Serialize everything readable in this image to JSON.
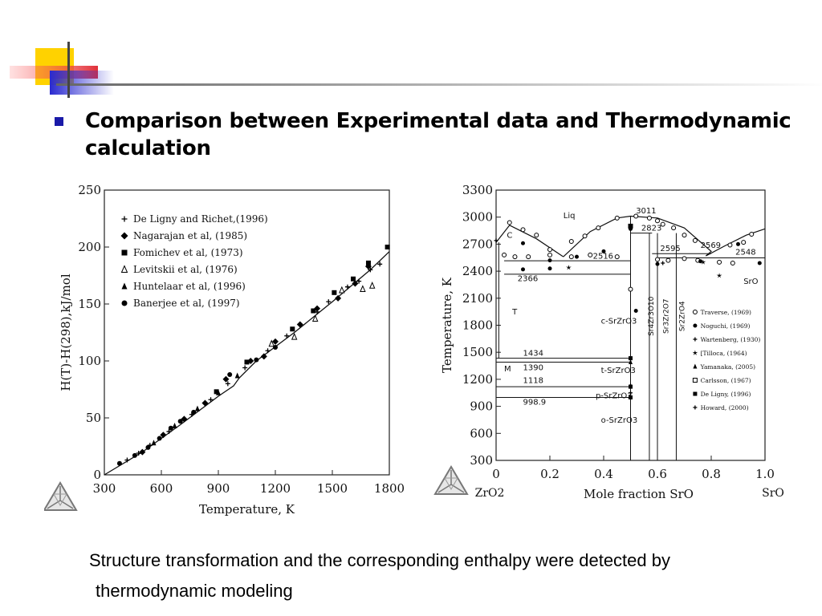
{
  "slide": {
    "title": "Comparison between Experimental data and Thermodynamic calculation",
    "caption_line1": "Structure transformation and the corresponding enthalpy were detected by",
    "caption_line2": "thermodynamic modeling",
    "bullet_color": "#1a1aa8",
    "icons": [
      "corner-decoration",
      "bullet-square",
      "software-logo-triangle"
    ]
  },
  "chart_data": [
    {
      "type": "scatter",
      "title": "",
      "xlabel": "Temperature, K",
      "ylabel": "H(T)-H(298),kJ/mol",
      "xlim": [
        300,
        1800
      ],
      "ylim": [
        0,
        250
      ],
      "x_ticks": [
        "300",
        "600",
        "900",
        "1200",
        "1500",
        "1800"
      ],
      "y_ticks": [
        "0",
        "50",
        "100",
        "150",
        "200",
        "250"
      ],
      "legend_position": "top-left",
      "calculated_line": [
        [
          300,
          0
        ],
        [
          500,
          20
        ],
        [
          700,
          44
        ],
        [
          900,
          69
        ],
        [
          980,
          78
        ],
        [
          1010,
          85
        ],
        [
          1100,
          100
        ],
        [
          1300,
          125
        ],
        [
          1500,
          152
        ],
        [
          1700,
          180
        ],
        [
          1800,
          196
        ]
      ],
      "series": [
        {
          "name": "De Ligny and Richet,(1996)",
          "marker": "plus",
          "points": [
            [
              420,
              13
            ],
            [
              480,
              19
            ],
            [
              540,
              26
            ],
            [
              640,
              38
            ],
            [
              760,
              53
            ],
            [
              860,
              66
            ],
            [
              950,
              80
            ],
            [
              1040,
              94
            ],
            [
              1160,
              109
            ],
            [
              1260,
              122
            ],
            [
              1420,
              143
            ],
            [
              1480,
              152
            ],
            [
              1580,
              165
            ],
            [
              1640,
              170
            ],
            [
              1700,
              180
            ],
            [
              1750,
              185
            ]
          ]
        },
        {
          "name": "Nagarajan et al, (1985)",
          "marker": "diamond",
          "points": [
            [
              500,
              20
            ],
            [
              610,
              35
            ],
            [
              720,
              49
            ],
            [
              830,
              63
            ],
            [
              940,
              84
            ],
            [
              1070,
              100
            ],
            [
              1140,
              104
            ],
            [
              1200,
              117
            ],
            [
              1330,
              132
            ],
            [
              1420,
              146
            ],
            [
              1530,
              155
            ],
            [
              1620,
              168
            ],
            [
              1690,
              183
            ]
          ]
        },
        {
          "name": "Fomichev et al, (1973)",
          "marker": "square",
          "points": [
            [
              890,
              73
            ],
            [
              1050,
              99
            ],
            [
              1290,
              128
            ],
            [
              1400,
              144
            ],
            [
              1510,
              160
            ],
            [
              1610,
              172
            ],
            [
              1690,
              186
            ],
            [
              1790,
              200
            ]
          ]
        },
        {
          "name": "Levitskii et al, (1976)",
          "marker": "triangle-open",
          "points": [
            [
              1180,
              115
            ],
            [
              1300,
              121
            ],
            [
              1410,
              137
            ],
            [
              1550,
              162
            ],
            [
              1660,
              163
            ],
            [
              1710,
              166
            ]
          ]
        },
        {
          "name": "Huntelaar et al, (1996)",
          "marker": "triangle-filled",
          "points": [
            [
              560,
              28
            ],
            [
              670,
              43
            ],
            [
              790,
              58
            ],
            [
              900,
              72
            ],
            [
              1000,
              87
            ]
          ]
        },
        {
          "name": "Banerjee et al, (1997)",
          "marker": "circle",
          "points": [
            [
              380,
              10
            ],
            [
              460,
              17
            ],
            [
              530,
              24
            ],
            [
              590,
              32
            ],
            [
              650,
              41
            ],
            [
              700,
              47
            ],
            [
              770,
              55
            ],
            [
              960,
              88
            ],
            [
              1100,
              101
            ],
            [
              1200,
              112
            ]
          ]
        }
      ]
    },
    {
      "type": "scatter",
      "title": "",
      "xlabel": "Mole fraction SrO",
      "ylabel": "Temperature, K",
      "xlim": [
        0,
        1
      ],
      "ylim": [
        300,
        3300
      ],
      "x_ticks": [
        "0",
        "0.2",
        "0.4",
        "0.6",
        "0.8",
        "1.0"
      ],
      "y_ticks": [
        "300",
        "600",
        "900",
        "1200",
        "1500",
        "1800",
        "2100",
        "2400",
        "2700",
        "3000",
        "3300"
      ],
      "x_end_labels": {
        "left": "ZrO2",
        "right": "SrO"
      },
      "legend_position": "right",
      "region_labels": [
        "Liq",
        "C",
        "T",
        "M",
        "c-SrZrO3",
        "t-SrZrO3",
        "p-SrZrO3",
        "o-SrZrO3",
        "SrO",
        "Sr4Zr3O10",
        "Sr3Zr2O7",
        "Sr2ZrO4"
      ],
      "invariant_temperatures": [
        "3011",
        "2823",
        "2595",
        "2569",
        "2548",
        "2516",
        "2366",
        "1434",
        "1390",
        "1118",
        "998.9"
      ],
      "liquidus_left": [
        [
          0.0,
          2720
        ],
        [
          0.05,
          2910
        ],
        [
          0.15,
          2760
        ],
        [
          0.25,
          2560
        ]
      ],
      "liquidus_mid": [
        [
          0.25,
          2560
        ],
        [
          0.35,
          2840
        ],
        [
          0.45,
          2990
        ],
        [
          0.5,
          3011
        ],
        [
          0.6,
          2990
        ],
        [
          0.7,
          2880
        ],
        [
          0.8,
          2620
        ],
        [
          0.78,
          2569
        ]
      ],
      "liquidus_right": [
        [
          0.78,
          2569
        ],
        [
          0.85,
          2680
        ],
        [
          0.93,
          2800
        ],
        [
          1.0,
          2870
        ]
      ],
      "invariant_lines": [
        {
          "t": 2823,
          "x1": 0.5,
          "x2": 0.58
        },
        {
          "t": 2595,
          "x1": 0.58,
          "x2": 0.8
        },
        {
          "t": 2548,
          "x1": 0.6,
          "x2": 1.0
        },
        {
          "t": 2516,
          "x1": 0.03,
          "x2": 0.5
        },
        {
          "t": 2366,
          "x1": 0.03,
          "x2": 0.5
        },
        {
          "t": 1434,
          "x1": 0.0,
          "x2": 0.5
        },
        {
          "t": 1390,
          "x1": 0.0,
          "x2": 0.5
        },
        {
          "t": 1118,
          "x1": 0.0,
          "x2": 0.5
        },
        {
          "t": 998.9,
          "x1": 0.0,
          "x2": 0.5
        }
      ],
      "compound_lines": [
        0.5,
        0.57,
        0.6,
        0.67
      ],
      "series": [
        {
          "name": "Traverse, (1969)",
          "marker": "circle-open",
          "points": [
            [
              0.05,
              2940
            ],
            [
              0.1,
              2860
            ],
            [
              0.15,
              2800
            ],
            [
              0.2,
              2640
            ],
            [
              0.28,
              2730
            ],
            [
              0.33,
              2790
            ],
            [
              0.38,
              2880
            ],
            [
              0.45,
              2990
            ],
            [
              0.5,
              2200
            ],
            [
              0.52,
              3011
            ],
            [
              0.57,
              2990
            ],
            [
              0.6,
              2960
            ],
            [
              0.62,
              2920
            ],
            [
              0.66,
              2880
            ],
            [
              0.7,
              2800
            ],
            [
              0.74,
              2740
            ],
            [
              0.95,
              2810
            ],
            [
              0.92,
              2720
            ],
            [
              0.87,
              2690
            ],
            [
              0.03,
              2580
            ],
            [
              0.07,
              2560
            ],
            [
              0.12,
              2560
            ],
            [
              0.2,
              2580
            ],
            [
              0.28,
              2560
            ],
            [
              0.35,
              2580
            ],
            [
              0.45,
              2560
            ],
            [
              0.6,
              2530
            ],
            [
              0.64,
              2520
            ],
            [
              0.7,
              2540
            ],
            [
              0.75,
              2520
            ],
            [
              0.83,
              2500
            ],
            [
              0.88,
              2490
            ]
          ]
        },
        {
          "name": "Noguchi, (1969)",
          "marker": "circle-filled",
          "points": [
            [
              0.1,
              2710
            ],
            [
              0.2,
              2520
            ],
            [
              0.3,
              2560
            ],
            [
              0.4,
              2620
            ],
            [
              0.5,
              2870
            ],
            [
              0.52,
              1960
            ],
            [
              0.6,
              2480
            ],
            [
              0.76,
              2510
            ],
            [
              0.9,
              2700
            ],
            [
              0.98,
              2490
            ],
            [
              0.1,
              2420
            ],
            [
              0.2,
              2430
            ]
          ]
        },
        {
          "name": "Wartenberg, (1930)",
          "marker": "plus",
          "points": [
            [
              0.0,
              2740
            ],
            [
              0.62,
              2490
            ]
          ]
        },
        {
          "name": "[Tilloca, (1964)",
          "marker": "star",
          "points": [
            [
              0.27,
              2440
            ],
            [
              0.83,
              2350
            ],
            [
              0.77,
              2500
            ]
          ]
        },
        {
          "name": "Yamanaka, (2005)",
          "marker": "triangle-filled",
          "points": [
            [
              0.5,
              1390
            ],
            [
              0.5,
              1130
            ]
          ]
        },
        {
          "name": "Carlsson, (1967)",
          "marker": "square-open",
          "points": [
            [
              0.5,
              2900
            ]
          ]
        },
        {
          "name": "De Ligny, (1996)",
          "marker": "square-filled",
          "points": [
            [
              0.5,
              1434
            ],
            [
              0.5,
              1118
            ],
            [
              0.5,
              999
            ],
            [
              0.5,
              2900
            ]
          ]
        },
        {
          "name": "Howard, (2000)",
          "marker": "plus",
          "points": [
            [
              0.5,
              1050
            ]
          ]
        }
      ]
    }
  ]
}
